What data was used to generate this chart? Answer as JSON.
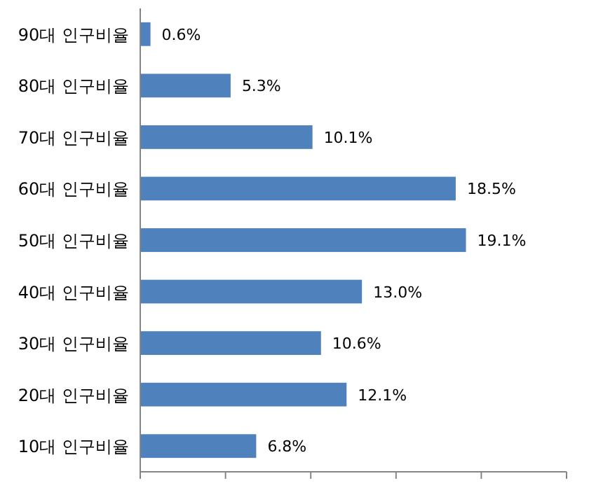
{
  "chart_data": {
    "type": "bar",
    "orientation": "horizontal",
    "categories": [
      "90대 인구비율",
      "80대 인구비율",
      "70대 인구비율",
      "60대 인구비율",
      "50대 인구비율",
      "40대 인구비율",
      "30대 인구비율",
      "20대 인구비율",
      "10대 인구비율"
    ],
    "values": [
      0.6,
      5.3,
      10.1,
      18.5,
      19.1,
      13.0,
      10.6,
      12.1,
      6.8
    ],
    "value_labels": [
      "0.6%",
      "5.3%",
      "10.1%",
      "18.5%",
      "19.1%",
      "13.0%",
      "10.6%",
      "12.1%",
      "6.8%"
    ],
    "color": "#4f81bd",
    "xlim": [
      0,
      25
    ],
    "xticks": [
      {
        "value": 0,
        "label": null
      },
      {
        "value": 5,
        "label": null
      },
      {
        "value": 10,
        "label": null
      },
      {
        "value": 15,
        "label": null
      },
      {
        "value": 20,
        "label": null
      },
      {
        "value": 25,
        "label": null
      }
    ],
    "tick_labels": "y",
    "grid": false
  }
}
